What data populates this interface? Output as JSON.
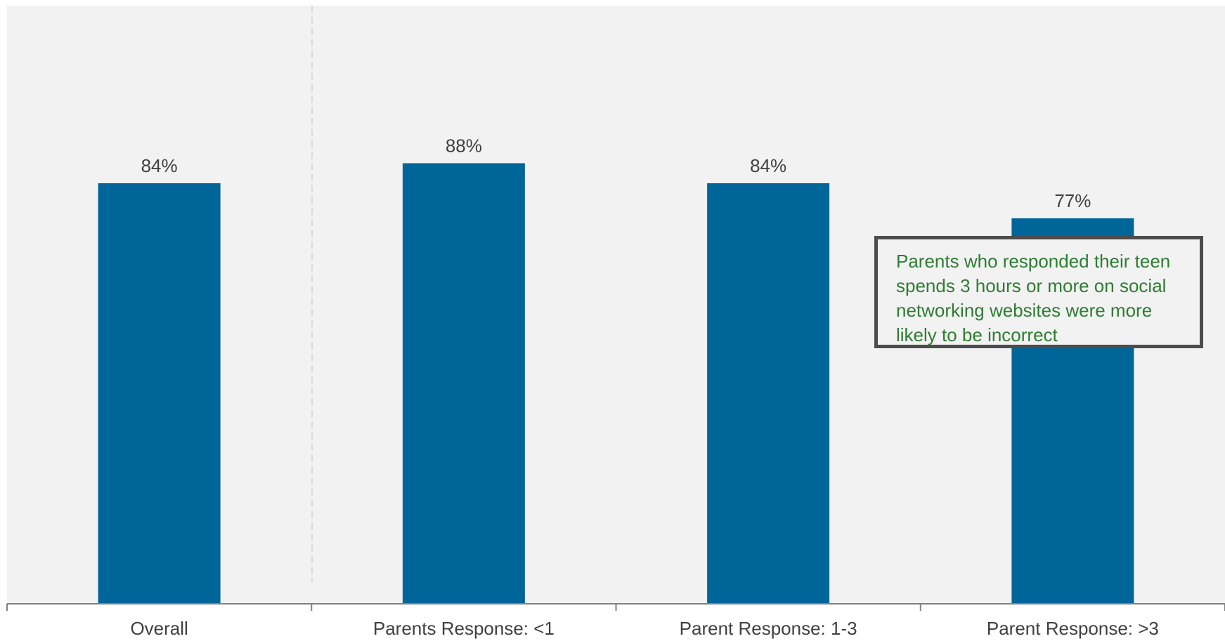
{
  "chart_data": {
    "type": "bar",
    "categories": [
      "Overall",
      "Parents Response: <1",
      "Parent Response: 1-3",
      "Parent Response: >3"
    ],
    "values": [
      84,
      88,
      84,
      77
    ],
    "data_labels": [
      "84%",
      "88%",
      "84%",
      "77%"
    ],
    "title": "",
    "xlabel": "",
    "ylabel": "",
    "grid": false,
    "legend": "none",
    "annotation": "Parents who responded their teen spends 3 hours or more on social networking websites were more likely to be incorrect",
    "colors": {
      "bar": "#006699",
      "plot_background": "#f2f2f2",
      "label_text": "#404040",
      "annotation_text": "#2e7d32",
      "annotation_border": "#4d4d4d",
      "axis": "#808080",
      "divider": "#d9d9d9"
    }
  }
}
